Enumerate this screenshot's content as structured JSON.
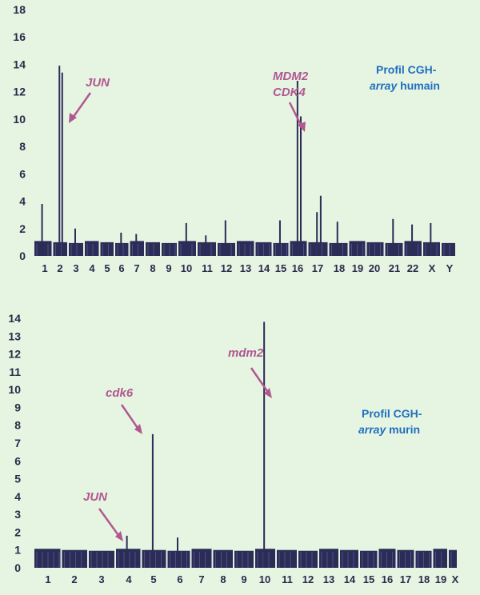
{
  "colors": {
    "background": "#e6f4e2",
    "bars": "#2b2d57",
    "bar_highlight": "#6d6fb0",
    "annotation": "#b0588f",
    "title": "#1f6fbf",
    "axis_text": "#2a2a4a"
  },
  "chart_data": [
    {
      "type": "bar",
      "title_line1": "Profil CGH-",
      "title_line2_italic": "array",
      "title_line2_rest": " humain",
      "ylim": [
        0,
        18
      ],
      "yticks": [
        "0",
        "2",
        "4",
        "6",
        "8",
        "10",
        "12",
        "14",
        "16",
        "18"
      ],
      "categories": [
        "1",
        "2",
        "3",
        "4",
        "5",
        "6",
        "7",
        "8",
        "9",
        "10",
        "11",
        "12",
        "13",
        "14",
        "15",
        "16",
        "17",
        "18",
        "19",
        "20",
        "21",
        "22",
        "X",
        "Y"
      ],
      "baseline": 1.0,
      "annotations": [
        {
          "label": "JUN",
          "chromosome": "2"
        },
        {
          "label": "MDM2",
          "chromosome": "16"
        },
        {
          "label": "CDK4",
          "chromosome": "16"
        }
      ],
      "peaks": [
        {
          "chromosome": "1",
          "value": 3.8
        },
        {
          "chromosome": "2",
          "value": 13.9
        },
        {
          "chromosome": "2",
          "value": 13.4
        },
        {
          "chromosome": "3",
          "value": 2.0
        },
        {
          "chromosome": "6",
          "value": 1.7
        },
        {
          "chromosome": "7",
          "value": 1.6
        },
        {
          "chromosome": "10",
          "value": 2.4
        },
        {
          "chromosome": "11",
          "value": 1.5
        },
        {
          "chromosome": "12",
          "value": 2.6
        },
        {
          "chromosome": "15",
          "value": 2.6
        },
        {
          "chromosome": "16",
          "value": 12.8
        },
        {
          "chromosome": "16",
          "value": 10.2
        },
        {
          "chromosome": "17",
          "value": 3.2
        },
        {
          "chromosome": "17",
          "value": 4.4
        },
        {
          "chromosome": "18",
          "value": 2.5
        },
        {
          "chromosome": "21",
          "value": 2.7
        },
        {
          "chromosome": "22",
          "value": 2.3
        },
        {
          "chromosome": "X",
          "value": 2.4
        }
      ]
    },
    {
      "type": "bar",
      "title_line1": "Profil CGH-",
      "title_line2_italic": "array",
      "title_line2_rest": " murin",
      "ylim": [
        0,
        14
      ],
      "yticks": [
        "0",
        "1",
        "2",
        "3",
        "4",
        "5",
        "6",
        "7",
        "8",
        "9",
        "10",
        "11",
        "12",
        "13",
        "14"
      ],
      "categories": [
        "1",
        "2",
        "3",
        "4",
        "5",
        "6",
        "7",
        "8",
        "9",
        "10",
        "11",
        "12",
        "13",
        "14",
        "15",
        "16",
        "17",
        "18",
        "19",
        "X"
      ],
      "baseline": 1.0,
      "annotations": [
        {
          "label": "JUN",
          "chromosome": "4"
        },
        {
          "label": "cdk6",
          "chromosome": "5"
        },
        {
          "label": "mdm2",
          "chromosome": "10"
        }
      ],
      "peaks": [
        {
          "chromosome": "4",
          "value": 1.8
        },
        {
          "chromosome": "5",
          "value": 7.5
        },
        {
          "chromosome": "6",
          "value": 1.7
        },
        {
          "chromosome": "10",
          "value": 13.8
        }
      ]
    }
  ]
}
